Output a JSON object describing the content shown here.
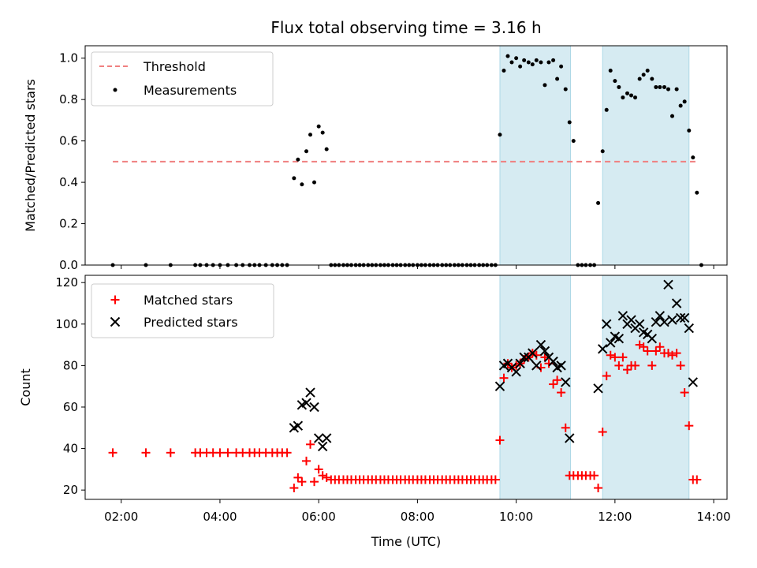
{
  "chart_data": {
    "type": "scatter",
    "title": "Flux total observing time = 3.16 h",
    "x_unit": "UTC hours",
    "xlabel": "Time (UTC)",
    "xlim": [
      1.27,
      14.27
    ],
    "x_ticks": [
      {
        "value": 2,
        "label": "02:00"
      },
      {
        "value": 4,
        "label": "04:00"
      },
      {
        "value": 6,
        "label": "06:00"
      },
      {
        "value": 8,
        "label": "08:00"
      },
      {
        "value": 10,
        "label": "10:00"
      },
      {
        "value": 12,
        "label": "12:00"
      },
      {
        "value": 14,
        "label": "14:00"
      }
    ],
    "shaded_intervals": [
      [
        9.67,
        11.1
      ],
      [
        11.75,
        13.5
      ]
    ],
    "shade_color": "#add8e6",
    "top": {
      "ylabel": "Matched/Predicted stars",
      "ylim": [
        0,
        1.06
      ],
      "y_ticks": [
        "0.0",
        "0.2",
        "0.4",
        "0.6",
        "0.8",
        "1.0"
      ],
      "legend": [
        "Threshold",
        "Measurements"
      ],
      "threshold": {
        "value": 0.5,
        "x_start": 1.83,
        "x_end": 13.63,
        "color": "#f08080"
      },
      "measurements": [
        [
          1.83,
          0
        ],
        [
          2.5,
          0
        ],
        [
          3,
          0
        ],
        [
          3.5,
          0
        ],
        [
          3.6,
          0
        ],
        [
          3.73,
          0
        ],
        [
          3.86,
          0
        ],
        [
          4,
          0
        ],
        [
          4.16,
          0
        ],
        [
          4.33,
          0
        ],
        [
          4.46,
          0
        ],
        [
          4.6,
          0
        ],
        [
          4.7,
          0
        ],
        [
          4.8,
          0
        ],
        [
          4.93,
          0
        ],
        [
          5.06,
          0
        ],
        [
          5.16,
          0
        ],
        [
          5.26,
          0
        ],
        [
          5.36,
          0
        ],
        [
          5.5,
          0.42
        ],
        [
          5.58,
          0.51
        ],
        [
          5.66,
          0.39
        ],
        [
          5.75,
          0.55
        ],
        [
          5.83,
          0.63
        ],
        [
          5.91,
          0.4
        ],
        [
          6,
          0.67
        ],
        [
          6.08,
          0.64
        ],
        [
          6.16,
          0.56
        ],
        [
          6.25,
          0
        ],
        [
          6.33,
          0
        ],
        [
          6.41,
          0
        ],
        [
          6.5,
          0
        ],
        [
          6.58,
          0
        ],
        [
          6.66,
          0
        ],
        [
          6.75,
          0
        ],
        [
          6.83,
          0
        ],
        [
          6.91,
          0
        ],
        [
          7,
          0
        ],
        [
          7.08,
          0
        ],
        [
          7.16,
          0
        ],
        [
          7.25,
          0
        ],
        [
          7.33,
          0
        ],
        [
          7.41,
          0
        ],
        [
          7.5,
          0
        ],
        [
          7.58,
          0
        ],
        [
          7.66,
          0
        ],
        [
          7.75,
          0
        ],
        [
          7.83,
          0
        ],
        [
          7.91,
          0
        ],
        [
          8,
          0
        ],
        [
          8.08,
          0
        ],
        [
          8.16,
          0
        ],
        [
          8.25,
          0
        ],
        [
          8.33,
          0
        ],
        [
          8.41,
          0
        ],
        [
          8.5,
          0
        ],
        [
          8.58,
          0
        ],
        [
          8.66,
          0
        ],
        [
          8.75,
          0
        ],
        [
          8.83,
          0
        ],
        [
          8.91,
          0
        ],
        [
          9,
          0
        ],
        [
          9.08,
          0
        ],
        [
          9.16,
          0
        ],
        [
          9.25,
          0
        ],
        [
          9.33,
          0
        ],
        [
          9.41,
          0
        ],
        [
          9.5,
          0
        ],
        [
          9.58,
          0
        ],
        [
          9.67,
          0.63
        ],
        [
          9.75,
          0.94
        ],
        [
          9.83,
          1.01
        ],
        [
          9.91,
          0.98
        ],
        [
          10,
          1
        ],
        [
          10.08,
          0.96
        ],
        [
          10.16,
          0.99
        ],
        [
          10.25,
          0.98
        ],
        [
          10.33,
          0.97
        ],
        [
          10.41,
          0.99
        ],
        [
          10.5,
          0.98
        ],
        [
          10.58,
          0.87
        ],
        [
          10.66,
          0.98
        ],
        [
          10.75,
          0.99
        ],
        [
          10.83,
          0.9
        ],
        [
          10.91,
          0.96
        ],
        [
          11,
          0.85
        ],
        [
          11.08,
          0.69
        ],
        [
          11.16,
          0.6
        ],
        [
          11.25,
          0
        ],
        [
          11.33,
          0
        ],
        [
          11.41,
          0
        ],
        [
          11.5,
          0
        ],
        [
          11.58,
          0
        ],
        [
          11.66,
          0.3
        ],
        [
          11.75,
          0.55
        ],
        [
          11.83,
          0.75
        ],
        [
          11.91,
          0.94
        ],
        [
          12,
          0.89
        ],
        [
          12.08,
          0.86
        ],
        [
          12.16,
          0.81
        ],
        [
          12.25,
          0.83
        ],
        [
          12.33,
          0.82
        ],
        [
          12.41,
          0.81
        ],
        [
          12.5,
          0.9
        ],
        [
          12.58,
          0.92
        ],
        [
          12.66,
          0.94
        ],
        [
          12.75,
          0.9
        ],
        [
          12.83,
          0.86
        ],
        [
          12.91,
          0.86
        ],
        [
          13,
          0.86
        ],
        [
          13.08,
          0.85
        ],
        [
          13.16,
          0.72
        ],
        [
          13.25,
          0.85
        ],
        [
          13.33,
          0.77
        ],
        [
          13.41,
          0.79
        ],
        [
          13.5,
          0.65
        ],
        [
          13.58,
          0.52
        ],
        [
          13.66,
          0.35
        ],
        [
          13.75,
          0
        ]
      ]
    },
    "bottom": {
      "ylabel": "Count",
      "ylim": [
        15.5,
        123.5
      ],
      "y_ticks": [
        "20",
        "40",
        "60",
        "80",
        "100",
        "120"
      ],
      "legend": [
        "Matched stars",
        "Predicted stars"
      ],
      "matched_color": "#ff0000",
      "predicted_color": "#000000",
      "matched": [
        [
          1.83,
          38
        ],
        [
          2.5,
          38
        ],
        [
          3,
          38
        ],
        [
          3.5,
          38
        ],
        [
          3.6,
          38
        ],
        [
          3.73,
          38
        ],
        [
          3.86,
          38
        ],
        [
          4,
          38
        ],
        [
          4.16,
          38
        ],
        [
          4.33,
          38
        ],
        [
          4.46,
          38
        ],
        [
          4.6,
          38
        ],
        [
          4.7,
          38
        ],
        [
          4.8,
          38
        ],
        [
          4.93,
          38
        ],
        [
          5.06,
          38
        ],
        [
          5.16,
          38
        ],
        [
          5.26,
          38
        ],
        [
          5.36,
          38
        ],
        [
          5.5,
          21
        ],
        [
          5.58,
          26
        ],
        [
          5.66,
          24
        ],
        [
          5.75,
          34
        ],
        [
          5.83,
          42
        ],
        [
          5.91,
          24
        ],
        [
          6,
          30
        ],
        [
          6.08,
          27
        ],
        [
          6.16,
          26
        ],
        [
          6.25,
          25
        ],
        [
          6.33,
          25
        ],
        [
          6.41,
          25
        ],
        [
          6.5,
          25
        ],
        [
          6.58,
          25
        ],
        [
          6.66,
          25
        ],
        [
          6.75,
          25
        ],
        [
          6.83,
          25
        ],
        [
          6.91,
          25
        ],
        [
          7,
          25
        ],
        [
          7.08,
          25
        ],
        [
          7.16,
          25
        ],
        [
          7.25,
          25
        ],
        [
          7.33,
          25
        ],
        [
          7.41,
          25
        ],
        [
          7.5,
          25
        ],
        [
          7.58,
          25
        ],
        [
          7.66,
          25
        ],
        [
          7.75,
          25
        ],
        [
          7.83,
          25
        ],
        [
          7.91,
          25
        ],
        [
          8,
          25
        ],
        [
          8.08,
          25
        ],
        [
          8.16,
          25
        ],
        [
          8.25,
          25
        ],
        [
          8.33,
          25
        ],
        [
          8.41,
          25
        ],
        [
          8.5,
          25
        ],
        [
          8.58,
          25
        ],
        [
          8.66,
          25
        ],
        [
          8.75,
          25
        ],
        [
          8.83,
          25
        ],
        [
          8.91,
          25
        ],
        [
          9,
          25
        ],
        [
          9.08,
          25
        ],
        [
          9.16,
          25
        ],
        [
          9.25,
          25
        ],
        [
          9.33,
          25
        ],
        [
          9.41,
          25
        ],
        [
          9.5,
          25
        ],
        [
          9.58,
          25
        ],
        [
          9.67,
          44
        ],
        [
          9.75,
          74
        ],
        [
          9.83,
          81
        ],
        [
          9.91,
          79
        ],
        [
          10,
          80
        ],
        [
          10.08,
          81
        ],
        [
          10.16,
          83
        ],
        [
          10.25,
          84
        ],
        [
          10.33,
          86
        ],
        [
          10.41,
          85
        ],
        [
          10.5,
          79
        ],
        [
          10.58,
          84
        ],
        [
          10.66,
          81
        ],
        [
          10.75,
          71
        ],
        [
          10.83,
          73
        ],
        [
          10.91,
          67
        ],
        [
          11,
          50
        ],
        [
          11.08,
          27
        ],
        [
          11.16,
          27
        ],
        [
          11.25,
          27
        ],
        [
          11.33,
          27
        ],
        [
          11.41,
          27
        ],
        [
          11.5,
          27
        ],
        [
          11.58,
          27
        ],
        [
          11.66,
          21
        ],
        [
          11.75,
          48
        ],
        [
          11.83,
          75
        ],
        [
          11.91,
          85
        ],
        [
          12,
          84
        ],
        [
          12.08,
          80
        ],
        [
          12.16,
          84
        ],
        [
          12.25,
          78
        ],
        [
          12.33,
          80
        ],
        [
          12.41,
          80
        ],
        [
          12.5,
          90
        ],
        [
          12.58,
          89
        ],
        [
          12.66,
          87
        ],
        [
          12.75,
          80
        ],
        [
          12.83,
          87
        ],
        [
          12.91,
          89
        ],
        [
          13,
          86
        ],
        [
          13.08,
          86
        ],
        [
          13.16,
          85
        ],
        [
          13.25,
          86
        ],
        [
          13.33,
          80
        ],
        [
          13.41,
          67
        ],
        [
          13.5,
          51
        ],
        [
          13.58,
          25
        ],
        [
          13.66,
          25
        ]
      ],
      "predicted": [
        [
          5.5,
          50
        ],
        [
          5.58,
          51
        ],
        [
          5.66,
          61
        ],
        [
          5.75,
          62
        ],
        [
          5.83,
          67
        ],
        [
          5.91,
          60
        ],
        [
          6,
          45
        ],
        [
          6.08,
          41
        ],
        [
          6.16,
          45
        ],
        [
          9.67,
          70
        ],
        [
          9.75,
          80
        ],
        [
          9.83,
          81
        ],
        [
          9.91,
          79
        ],
        [
          10,
          77
        ],
        [
          10.08,
          81
        ],
        [
          10.16,
          84
        ],
        [
          10.25,
          84
        ],
        [
          10.33,
          86
        ],
        [
          10.41,
          80
        ],
        [
          10.5,
          90
        ],
        [
          10.58,
          87
        ],
        [
          10.66,
          84
        ],
        [
          10.75,
          82
        ],
        [
          10.83,
          79
        ],
        [
          10.91,
          80
        ],
        [
          11,
          72
        ],
        [
          11.08,
          45
        ],
        [
          11.66,
          69
        ],
        [
          11.75,
          88
        ],
        [
          11.83,
          100
        ],
        [
          11.91,
          91
        ],
        [
          12,
          94
        ],
        [
          12.08,
          93
        ],
        [
          12.16,
          104
        ],
        [
          12.25,
          100
        ],
        [
          12.33,
          102
        ],
        [
          12.41,
          98
        ],
        [
          12.5,
          100
        ],
        [
          12.58,
          96
        ],
        [
          12.66,
          95
        ],
        [
          12.75,
          93
        ],
        [
          12.83,
          101
        ],
        [
          12.91,
          104
        ],
        [
          13,
          101
        ],
        [
          13.08,
          119
        ],
        [
          13.16,
          102
        ],
        [
          13.25,
          110
        ],
        [
          13.33,
          103
        ],
        [
          13.41,
          103
        ],
        [
          13.5,
          98
        ],
        [
          13.58,
          72
        ]
      ]
    }
  }
}
